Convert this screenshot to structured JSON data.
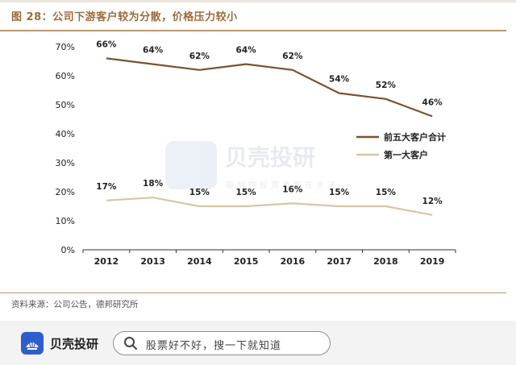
{
  "header": {
    "title": "图 28：公司下游客户较为分散，价格压力较小"
  },
  "chart_data": {
    "type": "line",
    "title": "图 28：公司下游客户较为分散，价格压力较小",
    "xlabel": "",
    "ylabel": "",
    "categories": [
      "2012",
      "2013",
      "2014",
      "2015",
      "2016",
      "2017",
      "2018",
      "2019"
    ],
    "ylim": [
      0,
      70
    ],
    "yticks": [
      0,
      10,
      20,
      30,
      40,
      50,
      60,
      70
    ],
    "ytick_labels": [
      "0%",
      "10%",
      "20%",
      "30%",
      "40%",
      "50%",
      "60%",
      "70%"
    ],
    "grid": false,
    "legend": "right",
    "series": [
      {
        "name": "前五大客户合计",
        "color": "#7b5330",
        "values": [
          66,
          64,
          62,
          64,
          62,
          54,
          52,
          46
        ],
        "labels": [
          "66%",
          "64%",
          "62%",
          "64%",
          "62%",
          "54%",
          "52%",
          "46%"
        ]
      },
      {
        "name": "第一大客户",
        "color": "#d9c5a5",
        "values": [
          17,
          18,
          15,
          15,
          16,
          15,
          15,
          12
        ],
        "labels": [
          "17%",
          "18%",
          "15%",
          "15%",
          "16%",
          "15%",
          "15%",
          "12%"
        ]
      }
    ]
  },
  "source": {
    "text": "资料来源：公司公告，德邦研究所"
  },
  "footer": {
    "brand": "贝壳投研",
    "search_placeholder": "股票好不好，搜一下就知道"
  },
  "watermark": {
    "brand": "贝壳投研",
    "tagline": "聪明的投资者都在关注"
  },
  "colors": {
    "accent": "#9c6b3a",
    "brand_blue": "#2f5dcf"
  }
}
